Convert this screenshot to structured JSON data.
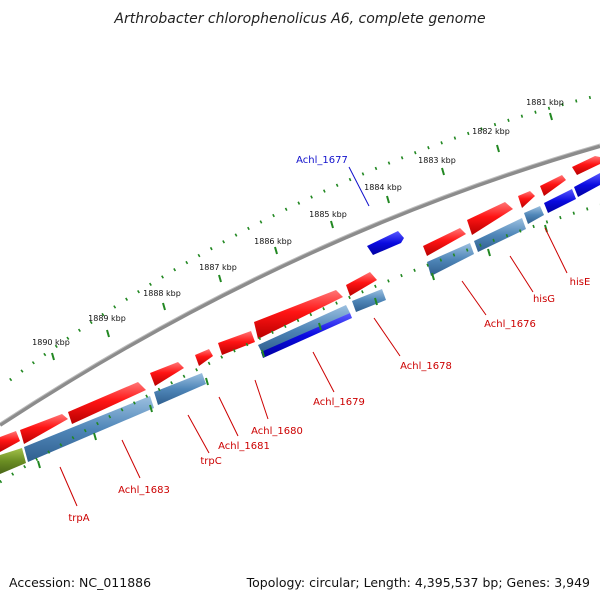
{
  "title": "Arthrobacter chlorophenolicus A6, complete genome",
  "footer": {
    "accession": "Accession: NC_011886",
    "topology": "Topology: circular; Length: 4,395,537 bp; Genes: 3,949"
  },
  "kbp_labels": [
    "1881 kbp",
    "1882 kbp",
    "1883 kbp",
    "1884 kbp",
    "1885 kbp",
    "1886 kbp",
    "1887 kbp",
    "1888 kbp",
    "1889 kbp",
    "1890 kbp"
  ],
  "gene_labels": [
    {
      "text": "Achl_1677",
      "color": "#1111cc"
    },
    {
      "text": "hisE",
      "color": "#cc0000"
    },
    {
      "text": "hisG",
      "color": "#cc0000"
    },
    {
      "text": "Achl_1676",
      "color": "#cc0000"
    },
    {
      "text": "Achl_1678",
      "color": "#cc0000"
    },
    {
      "text": "Achl_1679",
      "color": "#cc0000"
    },
    {
      "text": "Achl_1680",
      "color": "#cc0000"
    },
    {
      "text": "Achl_1681",
      "color": "#cc0000"
    },
    {
      "text": "trpC",
      "color": "#cc0000"
    },
    {
      "text": "Achl_1683",
      "color": "#cc0000"
    },
    {
      "text": "trpA",
      "color": "#cc0000"
    }
  ],
  "colors": {
    "cds_forward": "#ee1111",
    "cds_reverse": "#1111dd",
    "gene_track": "#4f86b8",
    "gene_track_green": "#6b8e23",
    "backbone": "#888888",
    "ticks": "#228822"
  }
}
